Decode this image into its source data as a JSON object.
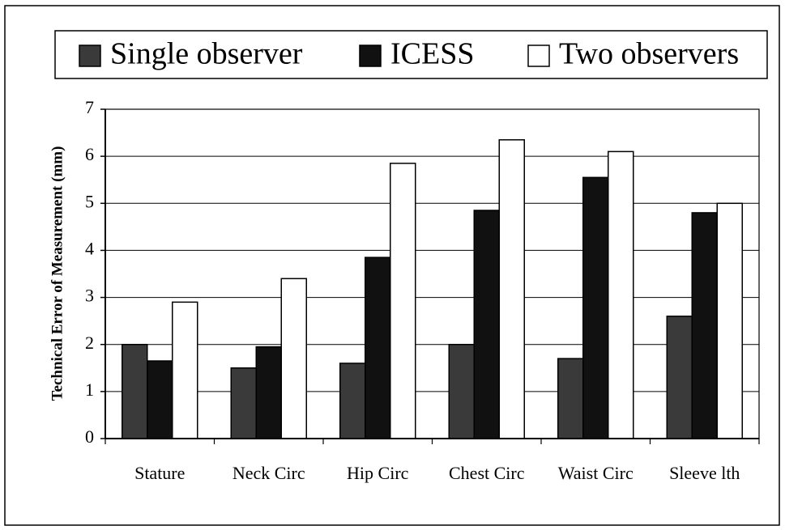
{
  "chart_data": {
    "type": "bar",
    "y_label": "Technical Error of Measurement (mm)",
    "categories": [
      "Stature",
      "Neck Circ",
      "Hip Circ",
      "Chest Circ",
      "Waist Circ",
      "Sleeve lth"
    ],
    "series": [
      {
        "name": "Single observer",
        "color": "#3a3a3a",
        "values": [
          2.0,
          1.5,
          1.6,
          2.0,
          1.7,
          2.6
        ]
      },
      {
        "name": "ICESS",
        "color": "#111111",
        "values": [
          1.65,
          1.95,
          3.85,
          4.85,
          5.55,
          4.8
        ]
      },
      {
        "name": "Two observers",
        "color": "#ffffff",
        "values": [
          2.9,
          3.4,
          5.85,
          6.35,
          6.1,
          5.0
        ]
      }
    ],
    "ylim": [
      0,
      7
    ],
    "yticks": [
      0,
      1,
      2,
      3,
      4,
      5,
      6,
      7
    ],
    "grid": true
  }
}
